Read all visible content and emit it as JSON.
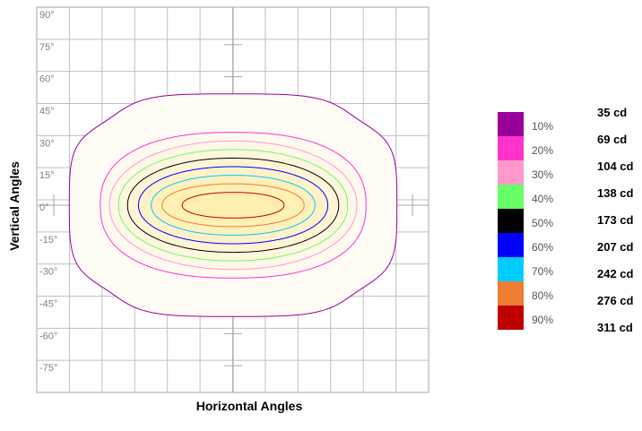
{
  "chart_data": {
    "type": "contour",
    "title": "",
    "xlabel": "Horizontal Angles",
    "ylabel": "Vertical Angles",
    "ylim": [
      -90,
      90
    ],
    "y_ticks": [
      "90°",
      "75°",
      "60°",
      "45°",
      "30°",
      "15°",
      "0°",
      "-15°",
      "-30°",
      "-45°",
      "-60°",
      "-75°"
    ],
    "grid": true,
    "legend_position": "right",
    "series": [
      {
        "level": "10%",
        "intensity": "35 cd",
        "color": "#990099"
      },
      {
        "level": "20%",
        "intensity": "69 cd",
        "color": "#ff33cc"
      },
      {
        "level": "30%",
        "intensity": "104 cd",
        "color": "#ff99cc"
      },
      {
        "level": "40%",
        "intensity": "138 cd",
        "color": "#66ff66"
      },
      {
        "level": "50%",
        "intensity": "173 cd",
        "color": "#000000"
      },
      {
        "level": "60%",
        "intensity": "207 cd",
        "color": "#0000ff"
      },
      {
        "level": "70%",
        "intensity": "242 cd",
        "color": "#00ccff"
      },
      {
        "level": "80%",
        "intensity": "276 cd",
        "color": "#ed7d31"
      },
      {
        "level": "90%",
        "intensity": "311 cd",
        "color": "#c00000"
      }
    ],
    "contour_extent_deg": [
      {
        "level": "10%",
        "h": 90,
        "v": 52
      },
      {
        "level": "20%",
        "h": 73,
        "v": 34
      },
      {
        "level": "30%",
        "h": 68,
        "v": 30
      },
      {
        "level": "40%",
        "h": 63,
        "v": 26
      },
      {
        "level": "50%",
        "h": 58,
        "v": 22
      },
      {
        "level": "60%",
        "h": 52,
        "v": 18
      },
      {
        "level": "70%",
        "h": 45,
        "v": 14
      },
      {
        "level": "80%",
        "h": 39,
        "v": 10
      },
      {
        "level": "90%",
        "h": 28,
        "v": 6
      }
    ]
  }
}
